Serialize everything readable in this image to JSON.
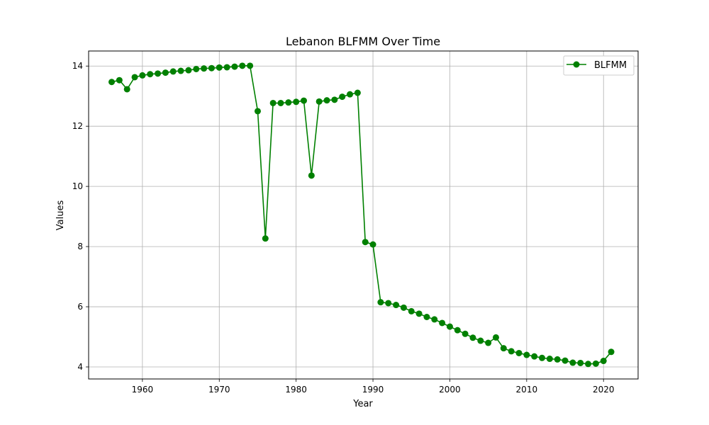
{
  "chart_data": {
    "type": "line",
    "title": "Lebanon BLFMM Over Time",
    "xlabel": "Year",
    "ylabel": "Values",
    "xlim": [
      1953,
      2024.5
    ],
    "ylim": [
      3.6,
      14.5
    ],
    "xticks": [
      1960,
      1970,
      1980,
      1990,
      2000,
      2010,
      2020
    ],
    "yticks": [
      4,
      6,
      8,
      10,
      12,
      14
    ],
    "grid": true,
    "legend_position": "top-right",
    "colors": {
      "line": "#008000"
    },
    "series": [
      {
        "name": "BLFMM",
        "x": [
          1956,
          1957,
          1958,
          1959,
          1960,
          1961,
          1962,
          1963,
          1964,
          1965,
          1966,
          1967,
          1968,
          1969,
          1970,
          1971,
          1972,
          1973,
          1974,
          1975,
          1976,
          1977,
          1978,
          1979,
          1980,
          1981,
          1982,
          1983,
          1984,
          1985,
          1986,
          1987,
          1988,
          1989,
          1990,
          1991,
          1992,
          1993,
          1994,
          1995,
          1996,
          1997,
          1998,
          1999,
          2000,
          2001,
          2002,
          2003,
          2004,
          2005,
          2006,
          2007,
          2008,
          2009,
          2010,
          2011,
          2012,
          2013,
          2014,
          2015,
          2016,
          2017,
          2018,
          2019,
          2020,
          2021
        ],
        "y": [
          13.47,
          13.53,
          13.23,
          13.63,
          13.69,
          13.73,
          13.75,
          13.78,
          13.82,
          13.84,
          13.86,
          13.9,
          13.92,
          13.93,
          13.95,
          13.96,
          13.98,
          14.01,
          14.01,
          12.5,
          8.27,
          12.77,
          12.77,
          12.79,
          12.81,
          12.85,
          10.36,
          12.82,
          12.86,
          12.88,
          12.98,
          13.06,
          13.11,
          8.15,
          8.07,
          6.15,
          6.12,
          6.06,
          5.97,
          5.85,
          5.77,
          5.66,
          5.58,
          5.46,
          5.34,
          5.22,
          5.1,
          4.97,
          4.87,
          4.8,
          4.98,
          4.62,
          4.52,
          4.46,
          4.4,
          4.35,
          4.3,
          4.27,
          4.25,
          4.21,
          4.14,
          4.13,
          4.1,
          4.11,
          4.2,
          4.5
        ]
      }
    ]
  }
}
